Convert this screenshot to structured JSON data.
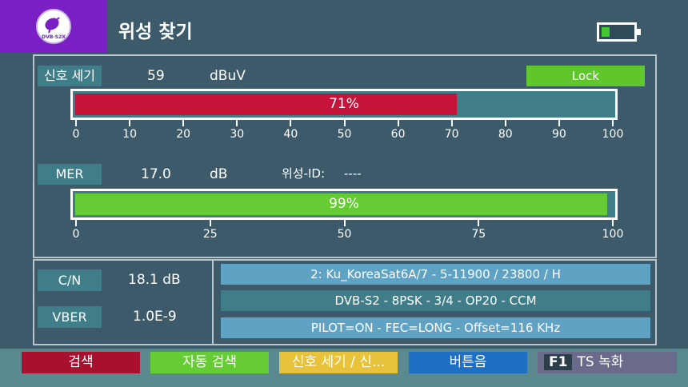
{
  "header": {
    "title": "위성 찾기",
    "logo_text": "DVB-S2X"
  },
  "signal": {
    "label": "신호 세기",
    "value": "59",
    "unit": "dBuV",
    "lock": "Lock",
    "percent": 71,
    "percent_label": "71%",
    "scale": [
      "0",
      "10",
      "20",
      "30",
      "40",
      "50",
      "60",
      "70",
      "80",
      "90",
      "100"
    ]
  },
  "mer": {
    "label": "MER",
    "value": "17.0",
    "unit": "dB",
    "sat_id_label": "위성-ID:",
    "sat_id_value": "----",
    "percent": 99,
    "percent_label": "99%",
    "scale": [
      "0",
      "25",
      "50",
      "75",
      "100"
    ]
  },
  "stats": {
    "cn_label": "C/N",
    "cn_value": "18.1 dB",
    "vber_label": "VBER",
    "vber_value": "1.0E-9"
  },
  "info": {
    "line1": "2: Ku_KoreaSat6A/7 - 5-11900 / 23800 / H",
    "line2": "DVB-S2 - 8PSK - 3/4 - OP20 - CCM",
    "line3": "PILOT=ON - FEC=LONG - Offset=116 KHz"
  },
  "fkeys": {
    "red": "검색",
    "green": "자동 검색",
    "yellow": "신호 세기 / 신...",
    "blue": "버튼음",
    "f1_key": "F1",
    "f1_label": "TS 녹화"
  },
  "colors": {
    "signal_bar": "#c4143a",
    "mer_bar": "#66cc33",
    "lock": "#5fc62b",
    "logo_bg": "#7a1fc4"
  }
}
